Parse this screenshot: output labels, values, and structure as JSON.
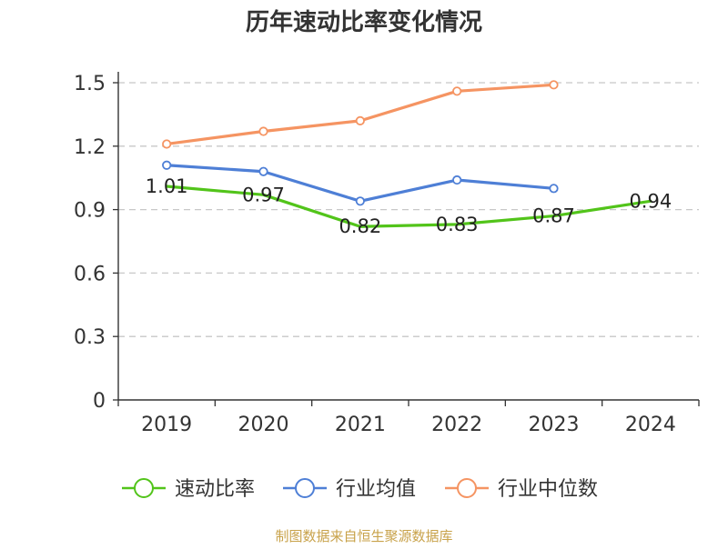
{
  "chart_data": {
    "type": "line",
    "title": "历年速动比率变化情况",
    "categories": [
      "2019",
      "2020",
      "2021",
      "2022",
      "2023",
      "2024"
    ],
    "ylim": [
      0,
      1.5
    ],
    "yticks": [
      "0",
      "0.3",
      "0.6",
      "0.9",
      "1.2",
      "1.5"
    ],
    "ytick_values": [
      0,
      0.3,
      0.6,
      0.9,
      1.2,
      1.5
    ],
    "grid": true,
    "legend_position": "bottom",
    "series": [
      {
        "name": "速动比率",
        "color": "#52c41a",
        "values": [
          1.01,
          0.97,
          0.82,
          0.83,
          0.87,
          0.94
        ],
        "labels": [
          "1.01",
          "0.97",
          "0.82",
          "0.83",
          "0.87",
          "0.94"
        ],
        "show_markers": false,
        "show_labels": true
      },
      {
        "name": "行业均值",
        "color": "#4e7fd6",
        "values": [
          1.11,
          1.08,
          0.94,
          1.04,
          1.0,
          null
        ],
        "show_markers": true,
        "show_labels": false
      },
      {
        "name": "行业中位数",
        "color": "#f59462",
        "values": [
          1.21,
          1.27,
          1.32,
          1.46,
          1.49,
          null
        ],
        "show_markers": true,
        "show_labels": false
      }
    ],
    "source": "制图数据来自恒生聚源数据库"
  }
}
